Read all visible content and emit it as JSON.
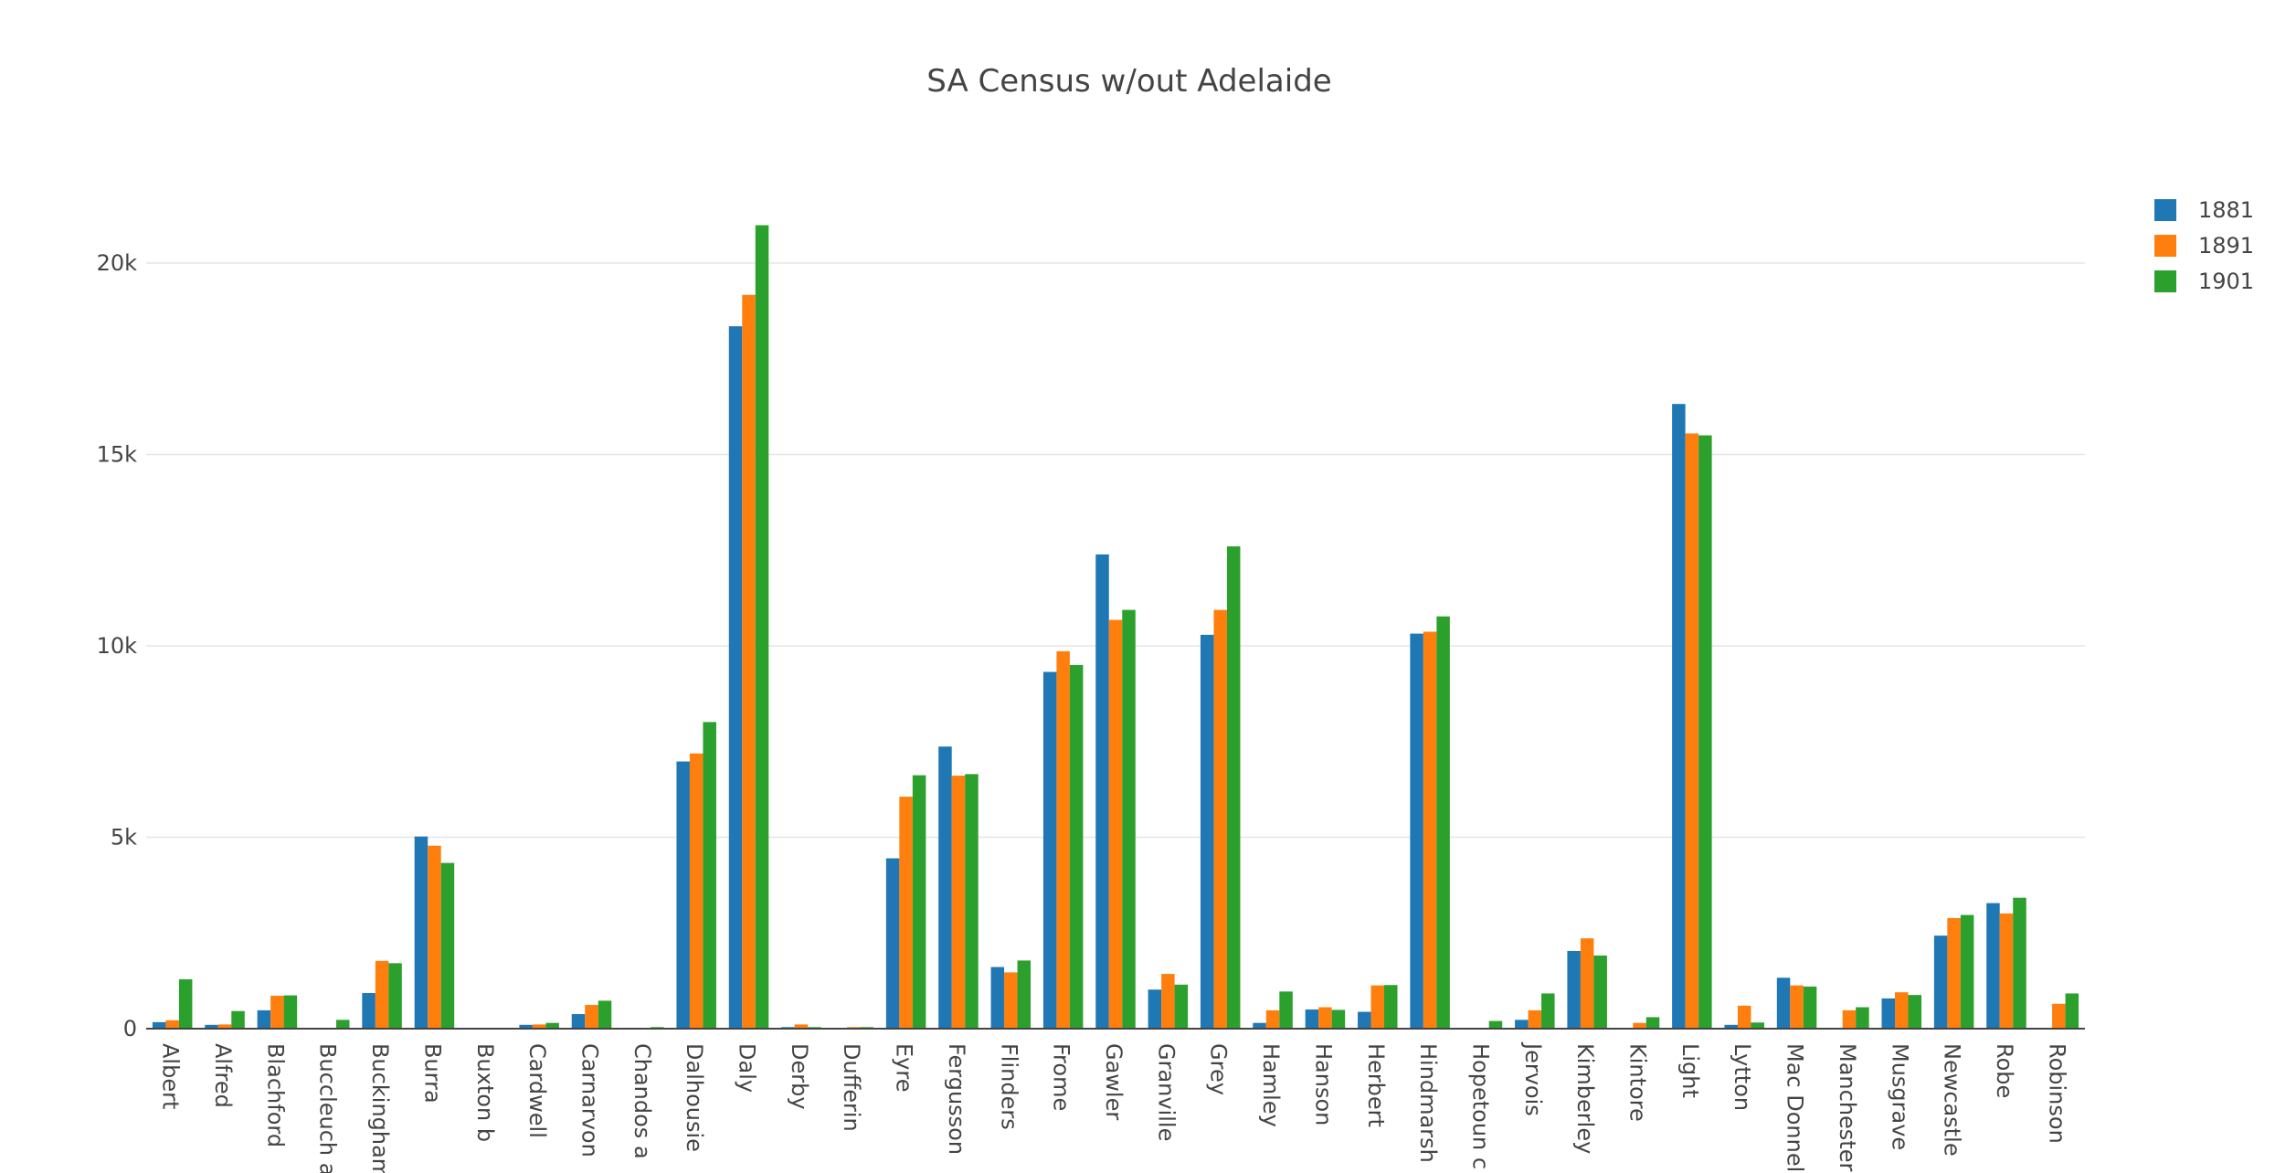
{
  "chart_data": {
    "type": "bar",
    "title": "SA Census w/out Adelaide",
    "xlabel": "",
    "ylabel": "",
    "ylim": [
      0,
      22000
    ],
    "yticks": [
      0,
      5000,
      10000,
      15000,
      20000
    ],
    "ytick_labels": [
      "0",
      "5k",
      "10k",
      "15k",
      "20k"
    ],
    "grid": true,
    "legend_position": "top-right",
    "categories": [
      "Albert",
      "Alfred",
      "Blachford",
      "Buccleuch a",
      "Buckingham",
      "Burra",
      "Buxton b",
      "Cardwell",
      "Carnarvon",
      "Chandos a",
      "Dalhousie",
      "Daly",
      "Derby",
      "Dufferin",
      "Eyre",
      "Fergusson",
      "Flinders",
      "Frome",
      "Gawler",
      "Granville",
      "Grey",
      "Hamley",
      "Hanson",
      "Herbert",
      "Hindmarsh",
      "Hopetoun c",
      "Jervois",
      "Kimberley",
      "Kintore",
      "Light",
      "Lytton",
      "Mac Donnell",
      "Manchester",
      "Musgrave",
      "Newcastle",
      "Robe",
      "Robinson"
    ],
    "series": [
      {
        "name": "1881",
        "color": "#1f77b4",
        "values": [
          170,
          100,
          480,
          0,
          930,
          5020,
          0,
          100,
          380,
          0,
          6980,
          18350,
          40,
          20,
          4450,
          7370,
          1610,
          9320,
          12390,
          1020,
          10290,
          150,
          500,
          440,
          10320,
          0,
          230,
          2030,
          0,
          16320,
          100,
          1330,
          0,
          790,
          2430,
          3280,
          0
        ]
      },
      {
        "name": "1891",
        "color": "#ff7f0e",
        "values": [
          220,
          110,
          860,
          0,
          1770,
          4780,
          0,
          110,
          620,
          0,
          7190,
          19170,
          110,
          40,
          6060,
          6610,
          1470,
          9860,
          10680,
          1430,
          10940,
          480,
          560,
          1130,
          10370,
          0,
          480,
          2360,
          150,
          15550,
          600,
          1130,
          480,
          950,
          2890,
          3010,
          650
        ]
      },
      {
        "name": "1901",
        "color": "#2ca02c",
        "values": [
          1290,
          460,
          870,
          230,
          1710,
          4330,
          0,
          150,
          730,
          40,
          8010,
          20990,
          40,
          40,
          6620,
          6650,
          1780,
          9500,
          10940,
          1150,
          12600,
          970,
          490,
          1140,
          10770,
          200,
          920,
          1910,
          300,
          15500,
          160,
          1100,
          560,
          880,
          2970,
          3420,
          920
        ]
      }
    ]
  }
}
